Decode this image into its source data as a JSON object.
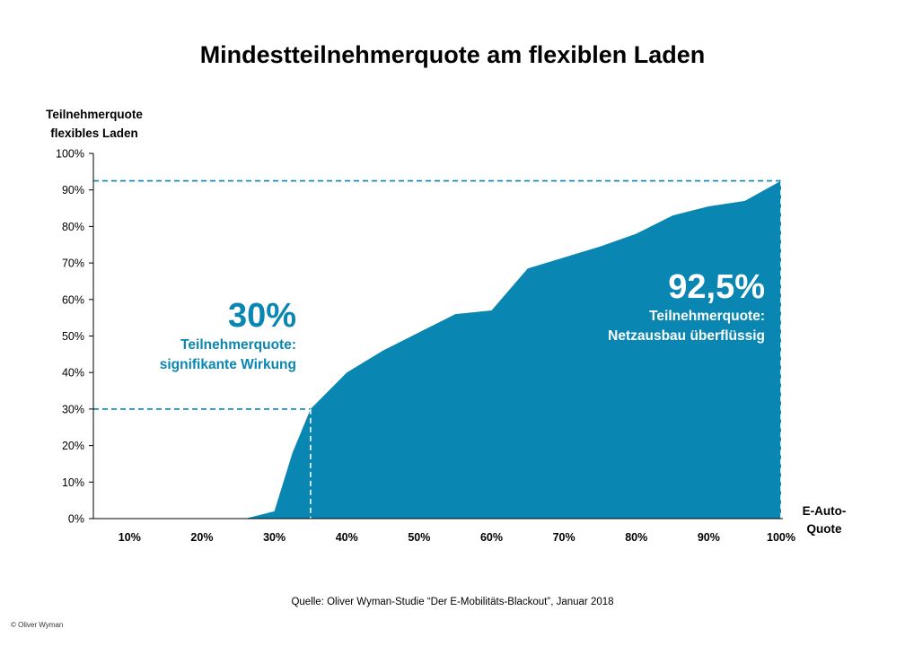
{
  "chart_data": {
    "type": "area",
    "title": "Mindestteilnehmerquote am flexiblen Laden",
    "ylabel": "Teilnehmerquote flexibles Laden",
    "xlabel": "E-Auto-Quote",
    "xlim": [
      0.05,
      1.0
    ],
    "ylim": [
      0,
      1.0
    ],
    "x_ticks": [
      {
        "value": 0.1,
        "label": "10%"
      },
      {
        "value": 0.2,
        "label": "20%"
      },
      {
        "value": 0.3,
        "label": "30%"
      },
      {
        "value": 0.4,
        "label": "40%"
      },
      {
        "value": 0.5,
        "label": "50%"
      },
      {
        "value": 0.6,
        "label": "60%"
      },
      {
        "value": 0.7,
        "label": "70%"
      },
      {
        "value": 0.8,
        "label": "80%"
      },
      {
        "value": 0.9,
        "label": "90%"
      },
      {
        "value": 1.0,
        "label": "100%"
      }
    ],
    "y_ticks": [
      {
        "value": 0.0,
        "label": "0%"
      },
      {
        "value": 0.1,
        "label": "10%"
      },
      {
        "value": 0.2,
        "label": "20%"
      },
      {
        "value": 0.3,
        "label": "30%"
      },
      {
        "value": 0.4,
        "label": "40%"
      },
      {
        "value": 0.5,
        "label": "50%"
      },
      {
        "value": 0.6,
        "label": "60%"
      },
      {
        "value": 0.7,
        "label": "70%"
      },
      {
        "value": 0.8,
        "label": "80%"
      },
      {
        "value": 0.9,
        "label": "90%"
      },
      {
        "value": 1.0,
        "label": "100%"
      }
    ],
    "x": [
      0.05,
      0.15,
      0.25,
      0.26,
      0.3,
      0.325,
      0.35,
      0.4,
      0.45,
      0.5,
      0.55,
      0.6,
      0.65,
      0.7,
      0.75,
      0.8,
      0.85,
      0.9,
      0.95,
      1.0
    ],
    "values": [
      0.0,
      0.0,
      0.0,
      0.0,
      0.02,
      0.18,
      0.3,
      0.4,
      0.46,
      0.51,
      0.56,
      0.57,
      0.685,
      0.715,
      0.745,
      0.78,
      0.83,
      0.855,
      0.87,
      0.925
    ],
    "reference_lines": [
      {
        "x": 0.35,
        "y": 0.3
      },
      {
        "x": 1.0,
        "y": 0.925
      }
    ],
    "annotations": [
      {
        "value": "30%",
        "line1": "Teilnehmerquote:",
        "line2": "signifikante Wirkung"
      },
      {
        "value": "92,5%",
        "line1": "Teilnehmerquote:",
        "line2": "Netzausbau überflüssig"
      }
    ],
    "colors": {
      "fill": "#0a86b2",
      "annotation_30": "#0a86b2",
      "annotation_92": "#ffffff",
      "reference_line": "#0a86b2",
      "axis": "#000000"
    },
    "grid": false
  },
  "footer": {
    "source": "Quelle: Oliver Wyman-Studie  “Der E-Mobilitäts-Blackout”, Januar 2018",
    "copyright": "© Oliver Wyman"
  }
}
